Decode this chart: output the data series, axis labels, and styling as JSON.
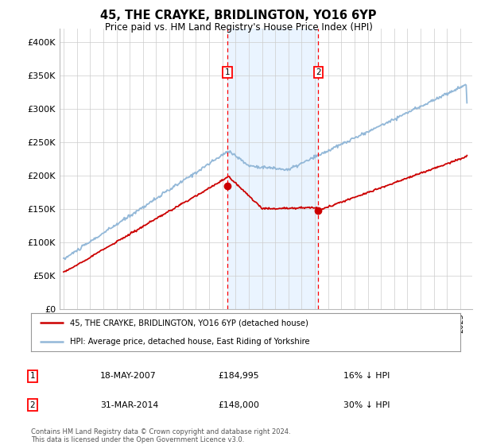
{
  "title": "45, THE CRAYKE, BRIDLINGTON, YO16 6YP",
  "subtitle": "Price paid vs. HM Land Registry's House Price Index (HPI)",
  "ylim": [
    0,
    420000
  ],
  "yticks": [
    0,
    50000,
    100000,
    150000,
    200000,
    250000,
    300000,
    350000,
    400000
  ],
  "ytick_labels": [
    "£0",
    "£50K",
    "£100K",
    "£150K",
    "£200K",
    "£250K",
    "£300K",
    "£350K",
    "£400K"
  ],
  "hpi_color": "#93b8d8",
  "price_color": "#cc0000",
  "sale1_date": 2007.38,
  "sale1_price": 184995,
  "sale2_date": 2014.25,
  "sale2_price": 148000,
  "legend_label1": "45, THE CRAYKE, BRIDLINGTON, YO16 6YP (detached house)",
  "legend_label2": "HPI: Average price, detached house, East Riding of Yorkshire",
  "table_row1_num": "1",
  "table_row1_date": "18-MAY-2007",
  "table_row1_price": "£184,995",
  "table_row1_hpi": "16% ↓ HPI",
  "table_row2_num": "2",
  "table_row2_date": "31-MAR-2014",
  "table_row2_price": "£148,000",
  "table_row2_hpi": "30% ↓ HPI",
  "footnote": "Contains HM Land Registry data © Crown copyright and database right 2024.\nThis data is licensed under the Open Government Licence v3.0.",
  "background_color": "#ffffff",
  "grid_color": "#cccccc",
  "shade_color": "#ddeeff"
}
